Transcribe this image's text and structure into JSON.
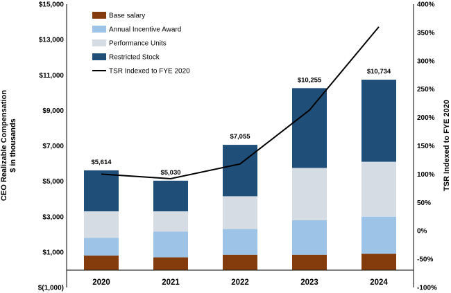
{
  "chart_data": {
    "type": "bar",
    "stacked": true,
    "categories": [
      "2020",
      "2021",
      "2022",
      "2023",
      "2024"
    ],
    "series": [
      {
        "name": "Base salary",
        "color": "#843C0C",
        "values": [
          800,
          700,
          850,
          850,
          900
        ]
      },
      {
        "name": "Annual Incentive Award",
        "color": "#9DC3E6",
        "values": [
          1000,
          1450,
          1450,
          1950,
          2100
        ]
      },
      {
        "name": "Performance Units",
        "color": "#D6DCE4",
        "values": [
          1500,
          1150,
          1850,
          2950,
          3100
        ]
      },
      {
        "name": "Restricted Stock",
        "color": "#1F4E79",
        "values": [
          2314,
          1730,
          2905,
          4505,
          4634
        ]
      }
    ],
    "line_series": {
      "name": "TSR Indexed to FYE 2020",
      "color": "#000000",
      "axis": "right",
      "values": [
        100,
        92,
        118,
        213,
        360
      ]
    },
    "totals": {
      "labels": [
        "$5,614",
        "$5,030",
        "$7,055",
        "$10,255",
        "$10,734"
      ],
      "values": [
        5614,
        5030,
        7055,
        10255,
        10734
      ]
    },
    "y_left": {
      "min": -1000,
      "max": 15000,
      "step": 2000,
      "ticks": [
        "$(1,000)",
        "$1,000",
        "$3,000",
        "$5,000",
        "$7,000",
        "$9,000",
        "$11,000",
        "$13,000",
        "$15,000"
      ]
    },
    "y_right": {
      "min": -100,
      "max": 400,
      "step": 50,
      "ticks": [
        "-100%",
        "-50%",
        "0%",
        "50%",
        "100%",
        "150%",
        "200%",
        "250%",
        "300%",
        "350%",
        "400%"
      ]
    },
    "ylabel_left_line1": "CEO Realizable Compensation",
    "ylabel_left_line2": "$ in thousands",
    "ylabel_right": "TSR Indexed to FYE 2020",
    "legend_position": "top-left"
  }
}
